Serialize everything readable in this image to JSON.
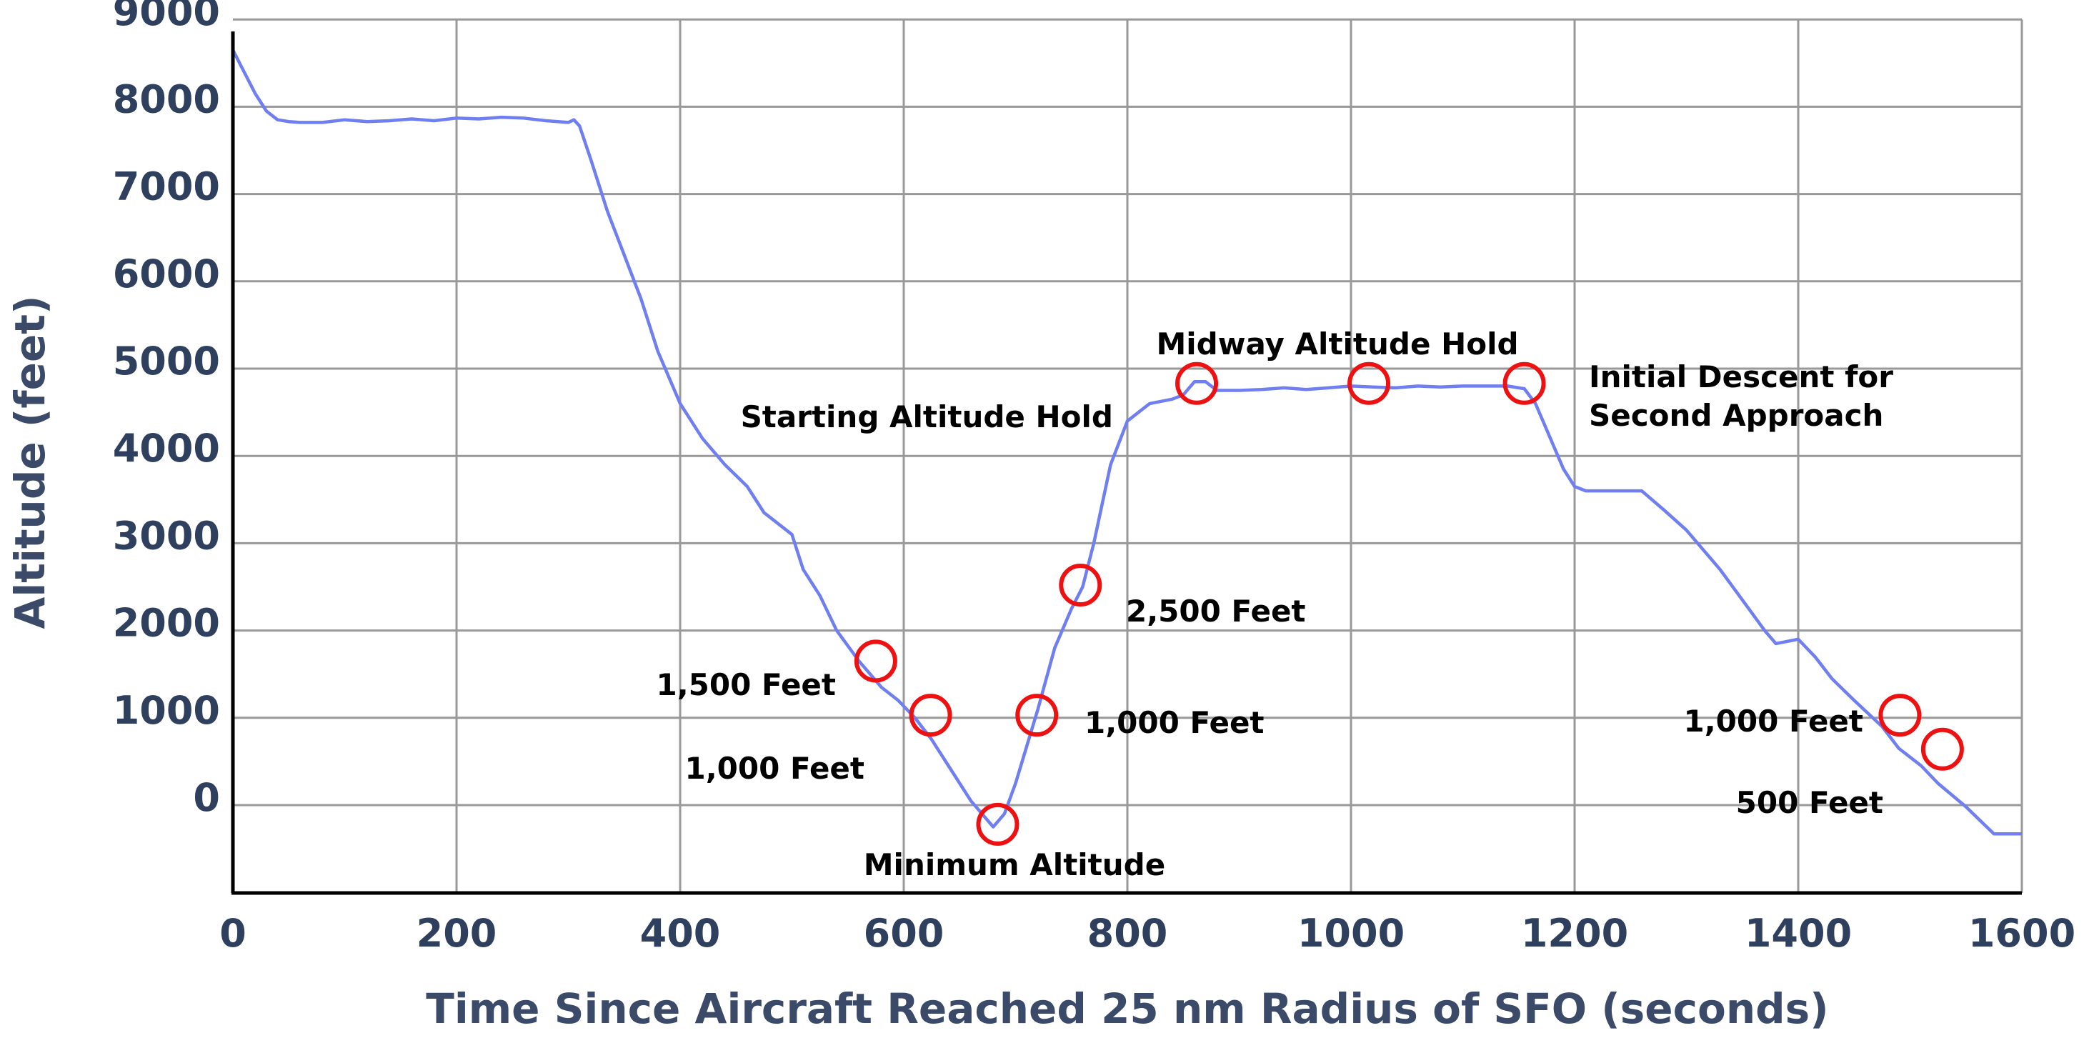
{
  "chart_data": {
    "type": "line",
    "title": "",
    "xlabel": "Time Since Aircraft Reached 25 nm Radius of SFO (seconds)",
    "ylabel": "Altitude (feet)",
    "xlim": [
      0,
      1600
    ],
    "ylim": [
      -1000,
      9000
    ],
    "xticks": [
      0,
      200,
      400,
      600,
      800,
      1000,
      1200,
      1400,
      1600
    ],
    "yticks": [
      0,
      1000,
      2000,
      3000,
      4000,
      5000,
      6000,
      7000,
      8000,
      9000
    ],
    "grid": true,
    "colors": {
      "line": "#6f7ff2",
      "marker": "#ee1111",
      "grid": "#999999",
      "axis": "#000000"
    },
    "series": [
      {
        "name": "Altitude",
        "x": [
          0,
          10,
          20,
          30,
          40,
          50,
          60,
          80,
          100,
          120,
          140,
          160,
          180,
          200,
          220,
          240,
          260,
          280,
          300,
          305,
          310,
          320,
          335,
          350,
          365,
          380,
          400,
          420,
          440,
          460,
          475,
          480,
          500,
          510,
          525,
          540,
          560,
          580,
          595,
          610,
          625,
          640,
          660,
          680,
          690,
          700,
          720,
          735,
          750,
          760,
          770,
          785,
          800,
          820,
          840,
          850,
          860,
          870,
          880,
          900,
          920,
          940,
          960,
          980,
          1000,
          1020,
          1040,
          1060,
          1080,
          1100,
          1120,
          1140,
          1155,
          1165,
          1175,
          1190,
          1200,
          1210,
          1230,
          1260,
          1280,
          1300,
          1330,
          1350,
          1370,
          1380,
          1400,
          1415,
          1430,
          1450,
          1475,
          1490,
          1510,
          1525,
          1550,
          1575,
          1600
        ],
        "values": [
          8650,
          8400,
          8150,
          7950,
          7850,
          7830,
          7820,
          7820,
          7850,
          7830,
          7840,
          7860,
          7840,
          7870,
          7860,
          7880,
          7870,
          7840,
          7820,
          7850,
          7780,
          7400,
          6800,
          6300,
          5800,
          5200,
          4600,
          4200,
          3900,
          3650,
          3350,
          3300,
          3100,
          2700,
          2400,
          2000,
          1650,
          1350,
          1200,
          1000,
          750,
          450,
          50,
          -250,
          -100,
          250,
          1100,
          1800,
          2250,
          2500,
          3000,
          3900,
          4400,
          4600,
          4650,
          4700,
          4850,
          4850,
          4750,
          4750,
          4760,
          4780,
          4760,
          4780,
          4800,
          4790,
          4780,
          4800,
          4790,
          4800,
          4800,
          4800,
          4770,
          4600,
          4300,
          3850,
          3650,
          3600,
          3600,
          3600,
          3380,
          3150,
          2700,
          2350,
          2000,
          1850,
          1900,
          1700,
          1450,
          1200,
          900,
          650,
          450,
          250,
          -20,
          -330,
          -330
        ]
      }
    ],
    "annotations": [
      {
        "label": "Starting Altitude Hold",
        "x": 862,
        "y": 4830
      },
      {
        "label": "Midway Altitude Hold",
        "x": 1016,
        "y": 4830
      },
      {
        "label": "Initial Descent for",
        "label2": "Second Approach",
        "x": 1155,
        "y": 4830
      },
      {
        "label": "1,500 Feet",
        "x": 575,
        "y": 1650
      },
      {
        "label": "1,000 Feet",
        "x": 624,
        "y": 1030
      },
      {
        "label": "Minimum Altitude",
        "x": 684,
        "y": -220
      },
      {
        "label": "1,000 Feet",
        "x": 719,
        "y": 1030
      },
      {
        "label": "2,500 Feet",
        "x": 758,
        "y": 2520
      },
      {
        "label": "1,000 Feet",
        "x": 1491,
        "y": 1030
      },
      {
        "label": "500 Feet",
        "x": 1529,
        "y": 640
      }
    ]
  }
}
